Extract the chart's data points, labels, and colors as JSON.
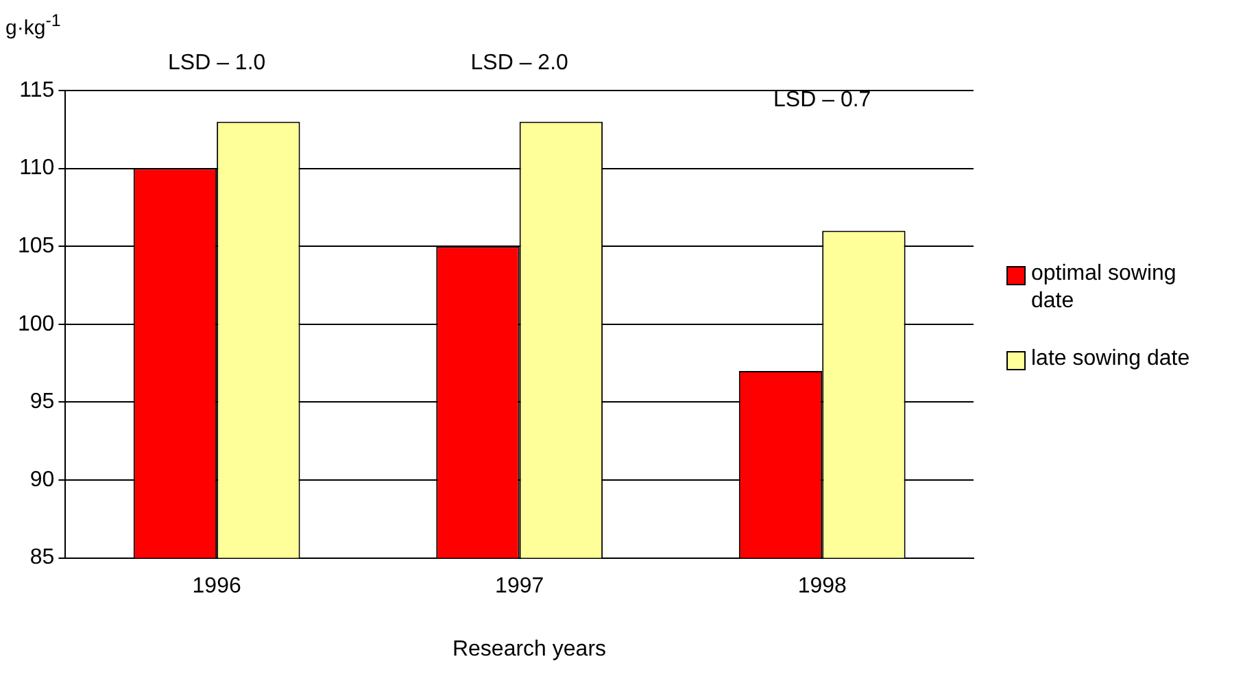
{
  "chart_data": {
    "type": "bar",
    "xlabel": "Research years",
    "ylabel": "g·kg$^{-1}$",
    "categories": [
      "1996",
      "1997",
      "1998"
    ],
    "series": [
      {
        "name": "optimal sowing date",
        "color": "#ff0000",
        "values": [
          110,
          105,
          97
        ]
      },
      {
        "name": "late sowing date",
        "color": "#ffff99",
        "values": [
          113,
          113,
          106
        ]
      }
    ],
    "ylim": [
      85,
      115
    ],
    "yticks": [
      85,
      90,
      95,
      100,
      105,
      110,
      115
    ],
    "grid": "y",
    "legend": "right",
    "annotations": [
      "LSD – 1.0",
      "LSD – 2.0",
      "LSD – 0.7"
    ]
  }
}
